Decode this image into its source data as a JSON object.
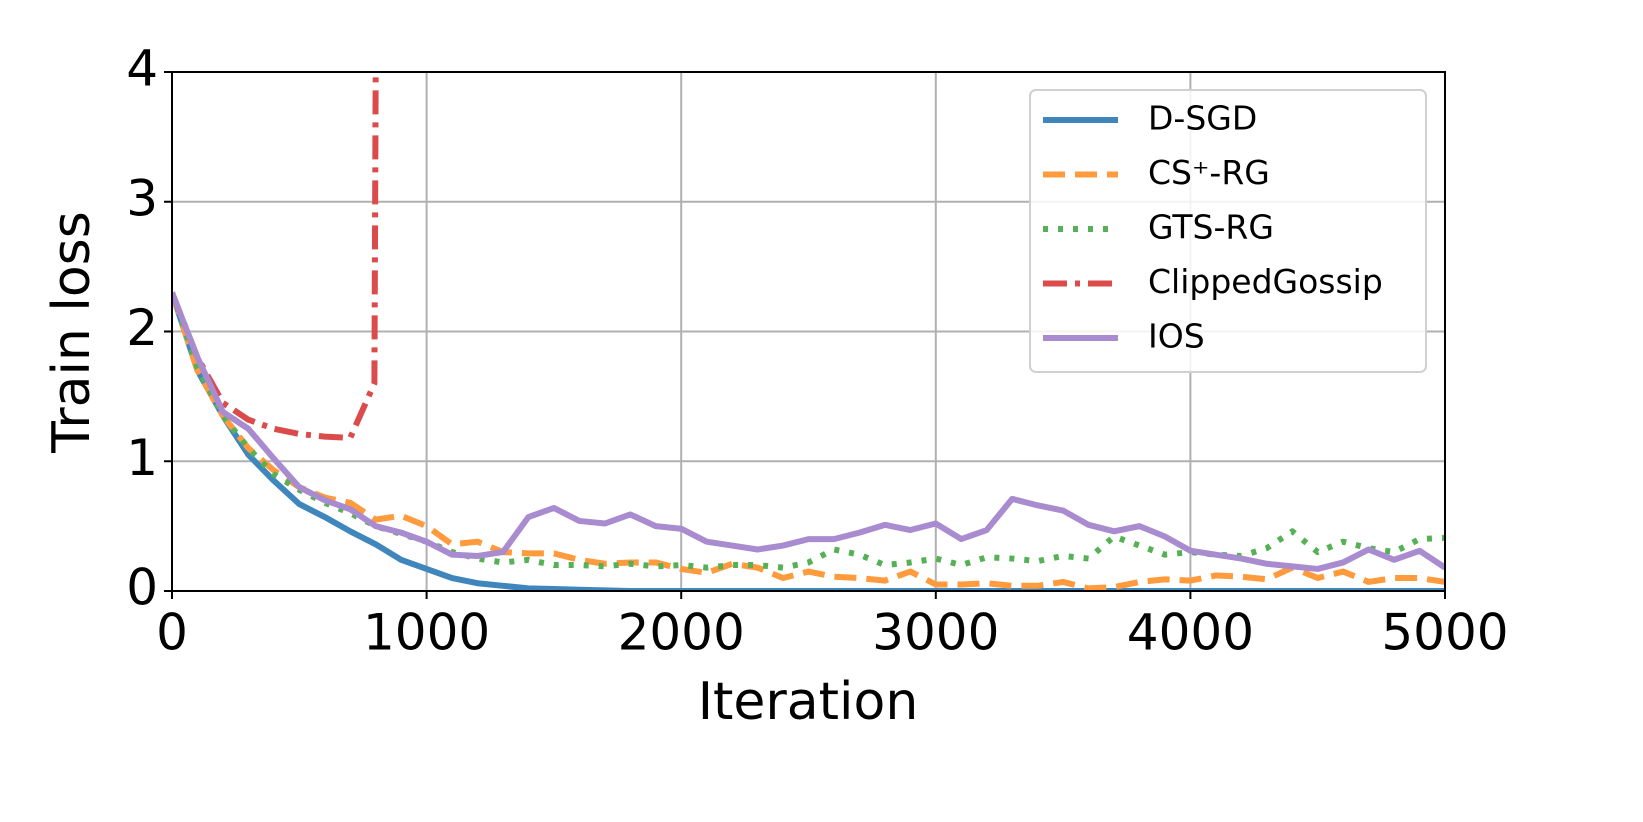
{
  "chart_data": {
    "type": "line",
    "xlabel": "Iteration",
    "ylabel": "Train loss",
    "x": [
      0,
      100,
      200,
      300,
      400,
      500,
      600,
      700,
      800,
      900,
      1000,
      1100,
      1200,
      1300,
      1400,
      1500,
      1600,
      1700,
      1800,
      1900,
      2000,
      2100,
      2200,
      2300,
      2400,
      2500,
      2600,
      2700,
      2800,
      2900,
      3000,
      3100,
      3200,
      3300,
      3400,
      3500,
      3600,
      3700,
      3800,
      3900,
      4000,
      4100,
      4200,
      4300,
      4400,
      4500,
      4600,
      4700,
      4800,
      4900,
      5000
    ],
    "xlim": [
      0,
      5000
    ],
    "xticks": [
      0,
      1000,
      2000,
      3000,
      4000,
      5000
    ],
    "ylim": [
      0,
      4
    ],
    "yticks": [
      0,
      1,
      2,
      3,
      4
    ],
    "grid": true,
    "legend": "upper right",
    "series": [
      {
        "name": "D-SGD",
        "color": "#3f86bd",
        "style": "solid",
        "values": [
          2.3,
          1.7,
          1.35,
          1.05,
          0.85,
          0.67,
          0.57,
          0.46,
          0.36,
          0.24,
          0.17,
          0.1,
          0.06,
          0.04,
          0.02,
          0.015,
          0.01,
          0.005,
          0,
          0,
          0,
          0,
          0,
          0,
          0,
          0,
          0,
          0,
          0,
          0,
          0,
          0,
          0,
          0,
          0,
          0,
          0,
          0,
          0,
          0,
          0,
          0,
          0,
          0,
          0,
          0,
          0,
          0,
          0,
          0,
          0
        ]
      },
      {
        "name": "CS⁺-RG",
        "color": "#ff9a3d",
        "style": "dashed",
        "values": [
          2.3,
          1.7,
          1.35,
          1.1,
          0.93,
          0.8,
          0.72,
          0.68,
          0.55,
          0.58,
          0.5,
          0.36,
          0.38,
          0.3,
          0.29,
          0.29,
          0.24,
          0.21,
          0.22,
          0.22,
          0.17,
          0.14,
          0.21,
          0.18,
          0.1,
          0.15,
          0.11,
          0.1,
          0.08,
          0.15,
          0.05,
          0.05,
          0.06,
          0.04,
          0.04,
          0.07,
          0.02,
          0.03,
          0.07,
          0.09,
          0.08,
          0.12,
          0.11,
          0.09,
          0.18,
          0.1,
          0.15,
          0.07,
          0.1,
          0.1,
          0.07
        ]
      },
      {
        "name": "GTS-RG",
        "color": "#56b156",
        "style": "dotted",
        "values": [
          2.3,
          1.72,
          1.35,
          1.1,
          0.9,
          0.78,
          0.68,
          0.6,
          0.5,
          0.44,
          0.38,
          0.3,
          0.25,
          0.22,
          0.24,
          0.2,
          0.2,
          0.19,
          0.21,
          0.19,
          0.2,
          0.18,
          0.2,
          0.2,
          0.18,
          0.22,
          0.32,
          0.28,
          0.2,
          0.22,
          0.25,
          0.2,
          0.26,
          0.25,
          0.23,
          0.27,
          0.25,
          0.42,
          0.35,
          0.28,
          0.3,
          0.28,
          0.27,
          0.33,
          0.46,
          0.3,
          0.38,
          0.33,
          0.3,
          0.4,
          0.41
        ]
      },
      {
        "name": "ClippedGossip",
        "color": "#db4b4b",
        "style": "dashdot",
        "x": [
          0,
          100,
          200,
          300,
          400,
          500,
          600,
          700,
          795,
          800
        ],
        "values": [
          2.3,
          1.8,
          1.45,
          1.32,
          1.25,
          1.21,
          1.19,
          1.18,
          1.6,
          4
        ]
      },
      {
        "name": "IOS",
        "color": "#a98bd0",
        "style": "solid",
        "values": [
          2.3,
          1.8,
          1.38,
          1.25,
          1.02,
          0.8,
          0.7,
          0.63,
          0.5,
          0.45,
          0.38,
          0.28,
          0.27,
          0.3,
          0.57,
          0.64,
          0.54,
          0.52,
          0.59,
          0.5,
          0.48,
          0.38,
          0.35,
          0.32,
          0.35,
          0.4,
          0.4,
          0.45,
          0.51,
          0.47,
          0.52,
          0.4,
          0.47,
          0.71,
          0.66,
          0.62,
          0.51,
          0.46,
          0.5,
          0.42,
          0.31,
          0.28,
          0.25,
          0.21,
          0.19,
          0.17,
          0.22,
          0.32,
          0.24,
          0.31,
          0.18
        ]
      }
    ]
  }
}
